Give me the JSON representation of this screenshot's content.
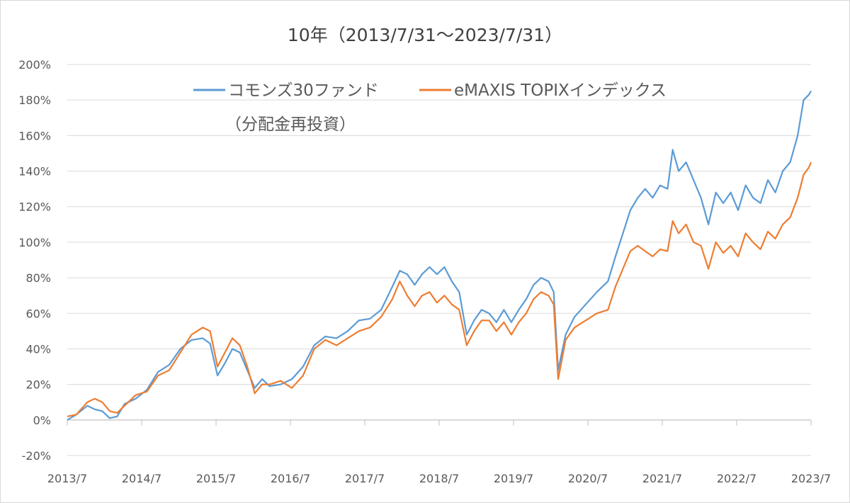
{
  "chart_data": {
    "type": "line",
    "title": "10年（2013/7/31～2023/7/31）",
    "xlabel": "",
    "ylabel": "",
    "x_ticks": [
      "2013/7",
      "2014/7",
      "2015/7",
      "2016/7",
      "2017/7",
      "2018/7",
      "2019/7",
      "2020/7",
      "2021/7",
      "2022/7",
      "2023/7"
    ],
    "y_ticks": [
      "200%",
      "180%",
      "160%",
      "140%",
      "120%",
      "100%",
      "80%",
      "60%",
      "40%",
      "20%",
      "0%",
      "-20%"
    ],
    "ylim": [
      -20,
      200
    ],
    "xlim": [
      2013.58,
      2023.58
    ],
    "grid": true,
    "legend_position": "top-center",
    "series": [
      {
        "name": "コモンズ30ファンド",
        "name_line2": "（分配金再投資）",
        "color": "#5b9bd5",
        "points": [
          [
            2013.58,
            0
          ],
          [
            2013.7,
            3
          ],
          [
            2013.85,
            8
          ],
          [
            2013.95,
            6
          ],
          [
            2014.05,
            5
          ],
          [
            2014.15,
            1
          ],
          [
            2014.25,
            2
          ],
          [
            2014.35,
            9
          ],
          [
            2014.5,
            12
          ],
          [
            2014.65,
            17
          ],
          [
            2014.8,
            27
          ],
          [
            2014.95,
            31
          ],
          [
            2015.1,
            40
          ],
          [
            2015.25,
            45
          ],
          [
            2015.4,
            46
          ],
          [
            2015.5,
            43
          ],
          [
            2015.6,
            25
          ],
          [
            2015.7,
            32
          ],
          [
            2015.8,
            40
          ],
          [
            2015.9,
            38
          ],
          [
            2016.0,
            28
          ],
          [
            2016.1,
            18
          ],
          [
            2016.2,
            23
          ],
          [
            2016.3,
            19
          ],
          [
            2016.45,
            20
          ],
          [
            2016.6,
            23
          ],
          [
            2016.75,
            30
          ],
          [
            2016.9,
            42
          ],
          [
            2017.05,
            47
          ],
          [
            2017.2,
            46
          ],
          [
            2017.35,
            50
          ],
          [
            2017.5,
            56
          ],
          [
            2017.65,
            57
          ],
          [
            2017.8,
            62
          ],
          [
            2017.95,
            75
          ],
          [
            2018.05,
            84
          ],
          [
            2018.15,
            82
          ],
          [
            2018.25,
            76
          ],
          [
            2018.35,
            82
          ],
          [
            2018.45,
            86
          ],
          [
            2018.55,
            82
          ],
          [
            2018.65,
            86
          ],
          [
            2018.75,
            78
          ],
          [
            2018.85,
            72
          ],
          [
            2018.95,
            48
          ],
          [
            2019.05,
            56
          ],
          [
            2019.15,
            62
          ],
          [
            2019.25,
            60
          ],
          [
            2019.35,
            55
          ],
          [
            2019.45,
            62
          ],
          [
            2019.55,
            55
          ],
          [
            2019.65,
            62
          ],
          [
            2019.75,
            68
          ],
          [
            2019.85,
            76
          ],
          [
            2019.95,
            80
          ],
          [
            2020.05,
            78
          ],
          [
            2020.12,
            72
          ],
          [
            2020.18,
            28
          ],
          [
            2020.28,
            48
          ],
          [
            2020.4,
            58
          ],
          [
            2020.55,
            65
          ],
          [
            2020.7,
            72
          ],
          [
            2020.85,
            78
          ],
          [
            2020.95,
            92
          ],
          [
            2021.05,
            105
          ],
          [
            2021.15,
            118
          ],
          [
            2021.25,
            125
          ],
          [
            2021.35,
            130
          ],
          [
            2021.45,
            125
          ],
          [
            2021.55,
            132
          ],
          [
            2021.65,
            130
          ],
          [
            2021.72,
            152
          ],
          [
            2021.8,
            140
          ],
          [
            2021.9,
            145
          ],
          [
            2022.0,
            135
          ],
          [
            2022.1,
            125
          ],
          [
            2022.2,
            110
          ],
          [
            2022.3,
            128
          ],
          [
            2022.4,
            122
          ],
          [
            2022.5,
            128
          ],
          [
            2022.6,
            118
          ],
          [
            2022.7,
            132
          ],
          [
            2022.8,
            125
          ],
          [
            2022.9,
            122
          ],
          [
            2023.0,
            135
          ],
          [
            2023.1,
            128
          ],
          [
            2023.2,
            140
          ],
          [
            2023.3,
            145
          ],
          [
            2023.4,
            160
          ],
          [
            2023.48,
            180
          ],
          [
            2023.55,
            183
          ],
          [
            2023.58,
            185
          ]
        ]
      },
      {
        "name": "eMAXIS TOPIXインデックス",
        "color": "#ed7d31",
        "points": [
          [
            2013.58,
            2
          ],
          [
            2013.7,
            3
          ],
          [
            2013.85,
            10
          ],
          [
            2013.95,
            12
          ],
          [
            2014.05,
            10
          ],
          [
            2014.15,
            5
          ],
          [
            2014.25,
            4
          ],
          [
            2014.35,
            8
          ],
          [
            2014.5,
            14
          ],
          [
            2014.65,
            16
          ],
          [
            2014.8,
            25
          ],
          [
            2014.95,
            28
          ],
          [
            2015.1,
            38
          ],
          [
            2015.25,
            48
          ],
          [
            2015.4,
            52
          ],
          [
            2015.5,
            50
          ],
          [
            2015.6,
            30
          ],
          [
            2015.7,
            38
          ],
          [
            2015.8,
            46
          ],
          [
            2015.9,
            42
          ],
          [
            2016.0,
            30
          ],
          [
            2016.1,
            15
          ],
          [
            2016.2,
            20
          ],
          [
            2016.3,
            20
          ],
          [
            2016.45,
            22
          ],
          [
            2016.6,
            18
          ],
          [
            2016.75,
            25
          ],
          [
            2016.9,
            40
          ],
          [
            2017.05,
            45
          ],
          [
            2017.2,
            42
          ],
          [
            2017.35,
            46
          ],
          [
            2017.5,
            50
          ],
          [
            2017.65,
            52
          ],
          [
            2017.8,
            58
          ],
          [
            2017.95,
            68
          ],
          [
            2018.05,
            78
          ],
          [
            2018.15,
            70
          ],
          [
            2018.25,
            64
          ],
          [
            2018.35,
            70
          ],
          [
            2018.45,
            72
          ],
          [
            2018.55,
            66
          ],
          [
            2018.65,
            70
          ],
          [
            2018.75,
            65
          ],
          [
            2018.85,
            62
          ],
          [
            2018.95,
            42
          ],
          [
            2019.05,
            50
          ],
          [
            2019.15,
            56
          ],
          [
            2019.25,
            56
          ],
          [
            2019.35,
            50
          ],
          [
            2019.45,
            55
          ],
          [
            2019.55,
            48
          ],
          [
            2019.65,
            55
          ],
          [
            2019.75,
            60
          ],
          [
            2019.85,
            68
          ],
          [
            2019.95,
            72
          ],
          [
            2020.05,
            70
          ],
          [
            2020.12,
            65
          ],
          [
            2020.18,
            23
          ],
          [
            2020.28,
            45
          ],
          [
            2020.4,
            52
          ],
          [
            2020.55,
            56
          ],
          [
            2020.7,
            60
          ],
          [
            2020.85,
            62
          ],
          [
            2020.95,
            75
          ],
          [
            2021.05,
            85
          ],
          [
            2021.15,
            95
          ],
          [
            2021.25,
            98
          ],
          [
            2021.35,
            95
          ],
          [
            2021.45,
            92
          ],
          [
            2021.55,
            96
          ],
          [
            2021.65,
            95
          ],
          [
            2021.72,
            112
          ],
          [
            2021.8,
            105
          ],
          [
            2021.9,
            110
          ],
          [
            2022.0,
            100
          ],
          [
            2022.1,
            98
          ],
          [
            2022.2,
            85
          ],
          [
            2022.3,
            100
          ],
          [
            2022.4,
            94
          ],
          [
            2022.5,
            98
          ],
          [
            2022.6,
            92
          ],
          [
            2022.7,
            105
          ],
          [
            2022.8,
            100
          ],
          [
            2022.9,
            96
          ],
          [
            2023.0,
            106
          ],
          [
            2023.1,
            102
          ],
          [
            2023.2,
            110
          ],
          [
            2023.3,
            114
          ],
          [
            2023.4,
            125
          ],
          [
            2023.48,
            138
          ],
          [
            2023.55,
            142
          ],
          [
            2023.58,
            145
          ]
        ]
      }
    ]
  }
}
